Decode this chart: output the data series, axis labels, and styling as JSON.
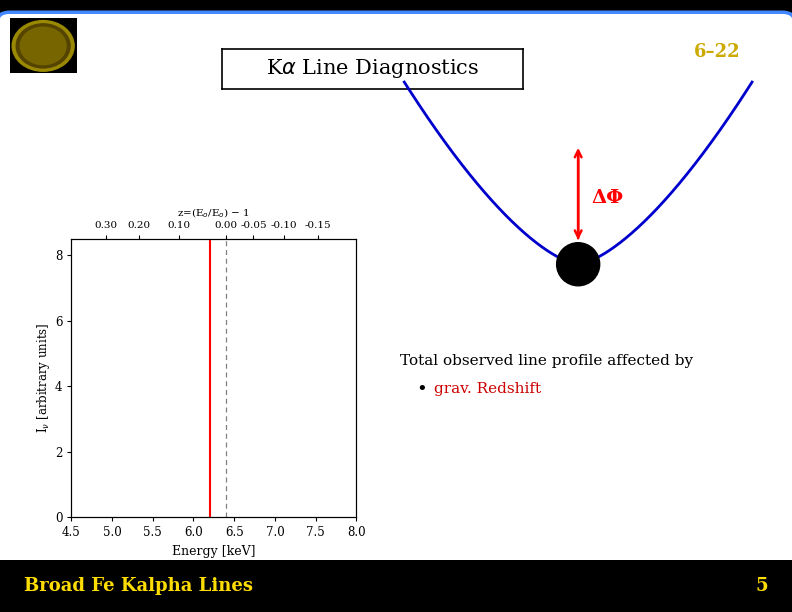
{
  "bg_color": "#000000",
  "slide_bg": "#ffffff",
  "slide_border_color": "#4488ff",
  "title_text": "K$\\alpha$ Line Diagnostics",
  "title_box_color": "#ffffff",
  "title_border_color": "#000000",
  "slide_number": "6–22",
  "slide_number_color": "#ccaa00",
  "footer_text": "Broad Fe Kalpha Lines",
  "footer_number": "5",
  "footer_color": "#ffdd00",
  "plot_xlim": [
    4.5,
    8.0
  ],
  "plot_ylim": [
    0,
    8.5
  ],
  "plot_xticks": [
    4.5,
    5.0,
    5.5,
    6.0,
    6.5,
    7.0,
    7.5,
    8.0
  ],
  "plot_yticks": [
    0,
    2,
    4,
    6,
    8
  ],
  "plot_xlabel": "Energy [keV]",
  "plot_ylabel": "I$_{\\nu}$ [arbitrary units]",
  "line_energy": 6.2,
  "dashed_energy": 6.4,
  "top_axis_label": "z=(E$_{o}$/E$_{o}$) − 1",
  "text_line1": "Total observed line profile affected by",
  "bullet_color": "#cc0000",
  "bullet_text": "grav. Redshift",
  "arrow_color": "#ff0000",
  "blue_curve_color": "#0000cc",
  "black_hole_color": "#000000",
  "delta_phi_color": "#ff0000",
  "delta_phi_text": "ΔΦ"
}
